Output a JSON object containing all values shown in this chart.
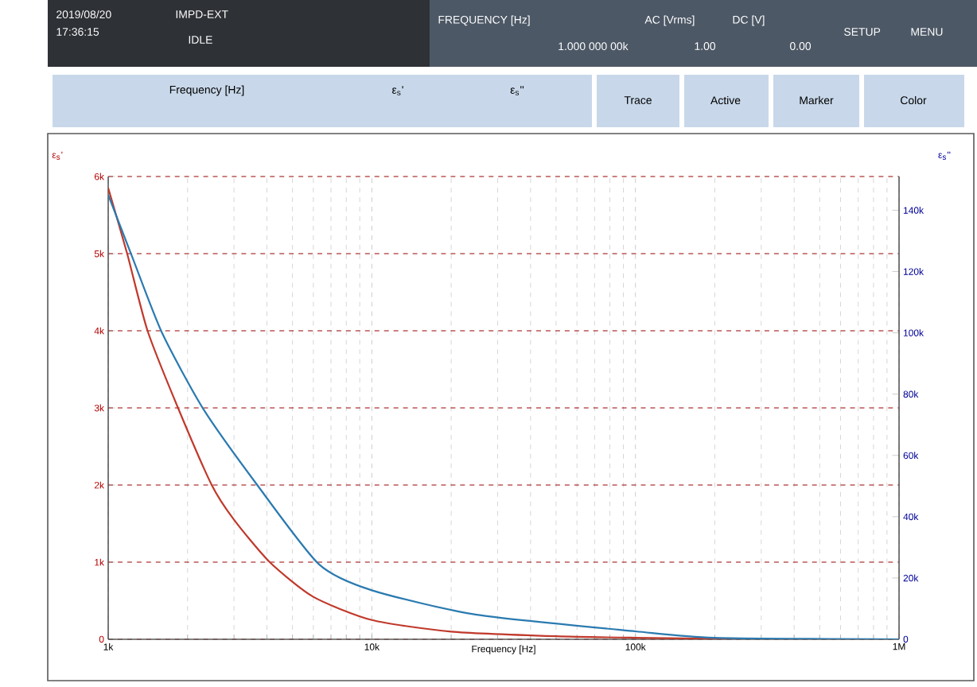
{
  "chart_data": {
    "type": "line",
    "xlabel": "Frequency [Hz]",
    "ylabel": "ε$_{s}$'",
    "y2label": "ε$_{s}$''",
    "log": "x",
    "grid": true,
    "xlim": [
      1000,
      1000000
    ],
    "xticks": [
      {
        "value": 1000,
        "label": "1k"
      },
      {
        "value": 10000,
        "label": "10k"
      },
      {
        "value": 100000,
        "label": "100k"
      },
      {
        "value": 1000000,
        "label": "1M"
      }
    ],
    "ylim": [
      0,
      6000
    ],
    "yticks": [
      0,
      {
        "value": 1000,
        "label": "1k"
      },
      {
        "value": 2000,
        "label": "2k"
      },
      {
        "value": 3000,
        "label": "3k"
      },
      {
        "value": 4000,
        "label": "4k"
      },
      {
        "value": 5000,
        "label": "5k"
      },
      {
        "value": 6000,
        "label": "6k"
      }
    ],
    "y2lim": [
      0,
      151000
    ],
    "y2ticks": [
      0,
      {
        "value": 20000,
        "label": "20k"
      },
      {
        "value": 40000,
        "label": "40k"
      },
      {
        "value": 60000,
        "label": "60k"
      },
      {
        "value": 80000,
        "label": "80k"
      },
      {
        "value": 100000,
        "label": "100k"
      },
      {
        "value": 120000,
        "label": "120k"
      },
      {
        "value": 140000,
        "label": "140k"
      }
    ],
    "series": [
      {
        "color": "#c0392b",
        "x": [
          1000,
          1180,
          1410,
          1840,
          2470,
          3000,
          4100,
          6000,
          10000,
          20000,
          50000,
          100000,
          300000,
          1000000
        ],
        "values": [
          5850,
          5000,
          4000,
          3000,
          2000,
          1550,
          1000,
          550,
          250,
          100,
          40,
          20,
          0,
          0
        ]
      },
      {
        "color": "#2a7ab0",
        "axis": "y2",
        "x": [
          1000,
          1230,
          1600,
          2300,
          3700,
          6300,
          10000,
          25000,
          100000,
          200000,
          1000000
        ],
        "values": [
          145000,
          125000,
          100000,
          75000,
          50000,
          24500,
          16000,
          8000,
          2600,
          500,
          0
        ]
      }
    ],
    "annotations": [
      "2019/08/20",
      "17:36:15",
      "IMPD-EXT",
      "IDLE",
      "FREQUENCY [Hz]",
      "1.000 000 00k",
      "AC [Vrms]",
      "1.00",
      "DC [V]",
      "0.00",
      "SETUP",
      "MENU",
      "Frequency [Hz]",
      "ε$_{s}$'",
      "ε$_{s}$''",
      "Trace",
      "Active",
      "Marker",
      "Color"
    ]
  }
}
